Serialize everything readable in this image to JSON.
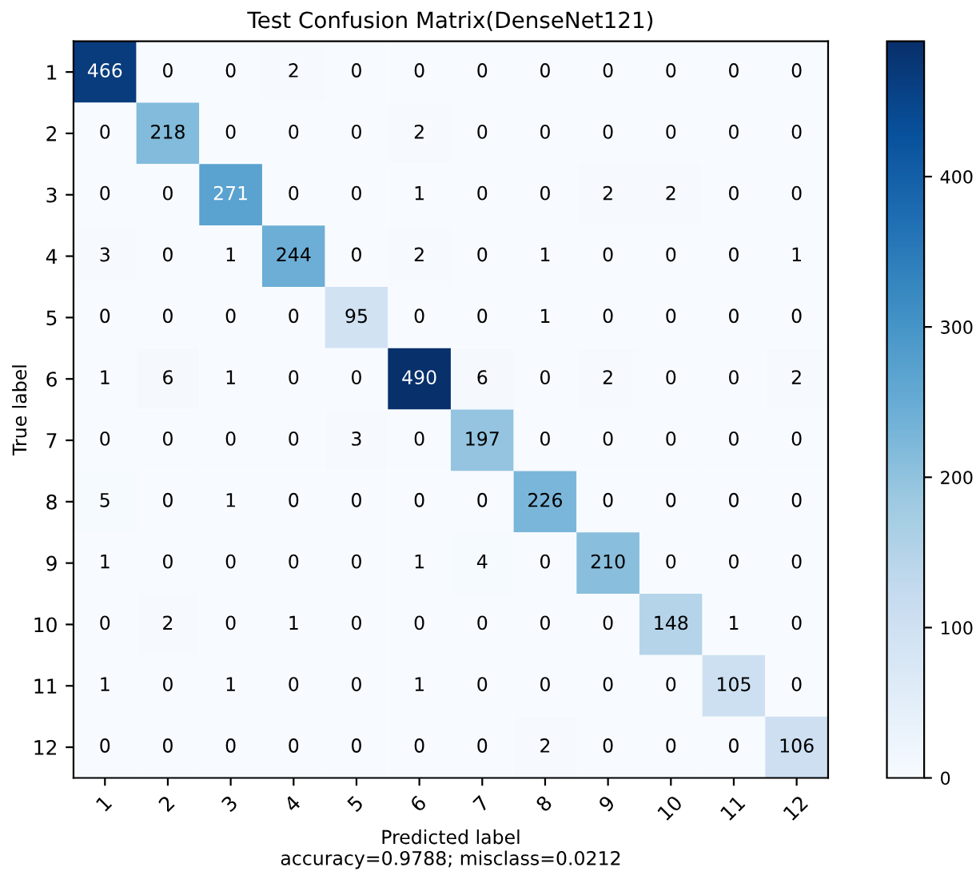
{
  "chart_data": {
    "type": "heatmap",
    "title": "Test Confusion Matrix(DenseNet121)",
    "xlabel": "Predicted label\naccuracy=0.9788; misclass=0.0212",
    "ylabel": "True label",
    "categories": [
      "1",
      "2",
      "3",
      "4",
      "5",
      "6",
      "7",
      "8",
      "9",
      "10",
      "11",
      "12"
    ],
    "y_categories": [
      "1",
      "2",
      "3",
      "4",
      "5",
      "6",
      "7",
      "8",
      "9",
      "10",
      "11",
      "12"
    ],
    "cells": [
      [
        466,
        0,
        0,
        2,
        0,
        0,
        0,
        0,
        0,
        0,
        0,
        0
      ],
      [
        0,
        218,
        0,
        0,
        0,
        2,
        0,
        0,
        0,
        0,
        0,
        0
      ],
      [
        0,
        0,
        271,
        0,
        0,
        1,
        0,
        0,
        2,
        2,
        0,
        0
      ],
      [
        3,
        0,
        1,
        244,
        0,
        2,
        0,
        1,
        0,
        0,
        0,
        1
      ],
      [
        0,
        0,
        0,
        0,
        95,
        0,
        0,
        1,
        0,
        0,
        0,
        0
      ],
      [
        1,
        6,
        1,
        0,
        0,
        490,
        6,
        0,
        2,
        0,
        0,
        2
      ],
      [
        0,
        0,
        0,
        0,
        3,
        0,
        197,
        0,
        0,
        0,
        0,
        0
      ],
      [
        5,
        0,
        1,
        0,
        0,
        0,
        0,
        226,
        0,
        0,
        0,
        0
      ],
      [
        1,
        0,
        0,
        0,
        0,
        1,
        4,
        0,
        210,
        0,
        0,
        0
      ],
      [
        0,
        2,
        0,
        1,
        0,
        0,
        0,
        0,
        0,
        148,
        1,
        0
      ],
      [
        1,
        0,
        1,
        0,
        0,
        1,
        0,
        0,
        0,
        0,
        105,
        0
      ],
      [
        0,
        0,
        0,
        0,
        0,
        0,
        0,
        2,
        0,
        0,
        0,
        106
      ]
    ],
    "clim": [
      0,
      490
    ],
    "cticks": [
      0,
      100,
      200,
      300,
      400
    ],
    "data_labels": true,
    "grid": false
  }
}
